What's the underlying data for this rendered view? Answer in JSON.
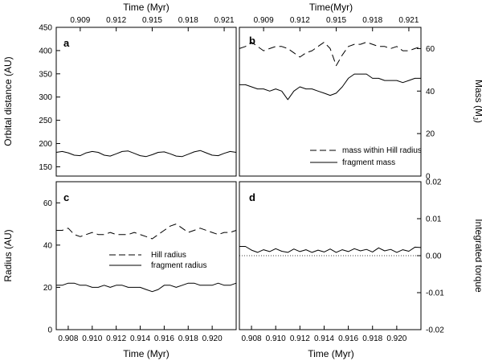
{
  "chart_data": [
    {
      "id": "a",
      "type": "line",
      "panel_label": "a",
      "top_xlabel": "Time (Myr)",
      "ylabel": "Orbital distance (AU)",
      "xlim": [
        0.907,
        0.922
      ],
      "ylim": [
        130,
        450
      ],
      "top_ticks": [
        "0.909",
        "0.912",
        "0.915",
        "0.918",
        "0.921"
      ],
      "y_ticks": [
        "150",
        "200",
        "250",
        "300",
        "350",
        "400",
        "450"
      ],
      "series": [
        {
          "name": "orbital distance",
          "style": "solid",
          "x": [
            0.907,
            0.9075,
            0.908,
            0.9085,
            0.909,
            0.9095,
            0.91,
            0.9105,
            0.911,
            0.9115,
            0.912,
            0.9125,
            0.913,
            0.9135,
            0.914,
            0.9145,
            0.915,
            0.9155,
            0.916,
            0.9165,
            0.917,
            0.9175,
            0.918,
            0.9185,
            0.919,
            0.9195,
            0.92,
            0.9205,
            0.921,
            0.9215,
            0.922
          ],
          "y": [
            181,
            183,
            180,
            175,
            174,
            180,
            183,
            181,
            175,
            173,
            178,
            183,
            184,
            179,
            174,
            172,
            176,
            181,
            182,
            178,
            173,
            172,
            177,
            182,
            185,
            180,
            175,
            174,
            179,
            183,
            181
          ]
        }
      ]
    },
    {
      "id": "b",
      "type": "line",
      "panel_label": "b",
      "top_xlabel": "Time(Myr)",
      "ylabel": "Mass (M",
      "ylabel_sub": "J",
      "ylabel_close": ")",
      "xlim": [
        0.907,
        0.922
      ],
      "ylim": [
        0,
        70
      ],
      "top_ticks": [
        "0.909",
        "0.912",
        "0.915",
        "0.918",
        "0.921"
      ],
      "y_ticks": [
        "0",
        "20",
        "40",
        "60"
      ],
      "legend": [
        "mass within Hill radius",
        "fragment mass"
      ],
      "series": [
        {
          "name": "mass within Hill radius",
          "style": "dashed",
          "x": [
            0.907,
            0.9075,
            0.908,
            0.9085,
            0.909,
            0.9095,
            0.91,
            0.9105,
            0.911,
            0.9115,
            0.912,
            0.9125,
            0.913,
            0.9135,
            0.914,
            0.9145,
            0.915,
            0.9155,
            0.916,
            0.9165,
            0.917,
            0.9175,
            0.918,
            0.9185,
            0.919,
            0.9195,
            0.92,
            0.9205,
            0.921,
            0.9215,
            0.922
          ],
          "y": [
            60,
            61,
            63,
            61,
            59,
            60,
            61,
            61,
            60,
            58,
            56,
            58,
            59,
            61,
            63,
            60,
            52,
            57,
            61,
            62,
            62,
            63,
            62,
            61,
            61,
            60,
            61,
            59,
            59,
            60,
            61
          ]
        },
        {
          "name": "fragment mass",
          "style": "solid",
          "x": [
            0.907,
            0.9075,
            0.908,
            0.9085,
            0.909,
            0.9095,
            0.91,
            0.9105,
            0.911,
            0.9115,
            0.912,
            0.9125,
            0.913,
            0.9135,
            0.914,
            0.9145,
            0.915,
            0.9155,
            0.916,
            0.9165,
            0.917,
            0.9175,
            0.918,
            0.9185,
            0.919,
            0.9195,
            0.92,
            0.9205,
            0.921,
            0.9215,
            0.922
          ],
          "y": [
            43,
            43,
            42,
            41,
            41,
            40,
            41,
            40,
            36,
            40,
            42,
            41,
            41,
            40,
            39,
            38,
            39,
            42,
            46,
            48,
            48,
            48,
            46,
            46,
            45,
            45,
            45,
            44,
            45,
            46,
            46
          ]
        }
      ]
    },
    {
      "id": "c",
      "type": "line",
      "panel_label": "c",
      "xlabel": "Time (Myr)",
      "ylabel": "Radius (AU)",
      "xlim": [
        0.907,
        0.922
      ],
      "ylim": [
        0,
        70
      ],
      "x_ticks": [
        "0.908",
        "0.910",
        "0.912",
        "0.914",
        "0.916",
        "0.918",
        "0.920"
      ],
      "y_ticks": [
        "0",
        "20",
        "40",
        "60"
      ],
      "legend": [
        "Hill radius",
        "fragment radius"
      ],
      "series": [
        {
          "name": "Hill radius",
          "style": "dashed",
          "x": [
            0.907,
            0.9075,
            0.908,
            0.9085,
            0.909,
            0.9095,
            0.91,
            0.9105,
            0.911,
            0.9115,
            0.912,
            0.9125,
            0.913,
            0.9135,
            0.914,
            0.9145,
            0.915,
            0.9155,
            0.916,
            0.9165,
            0.917,
            0.9175,
            0.918,
            0.9185,
            0.919,
            0.9195,
            0.92,
            0.9205,
            0.921,
            0.9215,
            0.922
          ],
          "y": [
            47,
            47,
            48,
            45,
            44,
            45,
            46,
            45,
            45,
            46,
            45,
            45,
            45,
            46,
            45,
            44,
            43,
            45,
            47,
            49,
            50,
            48,
            46,
            47,
            48,
            47,
            46,
            45,
            46,
            46,
            47
          ]
        },
        {
          "name": "fragment radius",
          "style": "solid",
          "x": [
            0.907,
            0.9075,
            0.908,
            0.9085,
            0.909,
            0.9095,
            0.91,
            0.9105,
            0.911,
            0.9115,
            0.912,
            0.9125,
            0.913,
            0.9135,
            0.914,
            0.9145,
            0.915,
            0.9155,
            0.916,
            0.9165,
            0.917,
            0.9175,
            0.918,
            0.9185,
            0.919,
            0.9195,
            0.92,
            0.9205,
            0.921,
            0.9215,
            0.922
          ],
          "y": [
            21,
            21,
            22,
            22,
            21,
            21,
            20,
            20,
            21,
            20,
            21,
            21,
            20,
            20,
            20,
            19,
            18,
            19,
            21,
            21,
            20,
            21,
            22,
            22,
            21,
            21,
            21,
            22,
            21,
            21,
            22
          ]
        }
      ]
    },
    {
      "id": "d",
      "type": "line",
      "panel_label": "d",
      "xlabel": "Time (Myr)",
      "ylabel": "Integrated torque",
      "xlim": [
        0.907,
        0.922
      ],
      "ylim": [
        -0.02,
        0.02
      ],
      "x_ticks": [
        "0.908",
        "0.910",
        "0.912",
        "0.914",
        "0.916",
        "0.918",
        "0.920"
      ],
      "y_ticks": [
        "-0.02",
        "-0.01",
        "0.00",
        "0.01",
        "0.02"
      ],
      "series": [
        {
          "name": "integrated torque",
          "style": "solid",
          "x": [
            0.907,
            0.9075,
            0.908,
            0.9085,
            0.909,
            0.9095,
            0.91,
            0.9105,
            0.911,
            0.9115,
            0.912,
            0.9125,
            0.913,
            0.9135,
            0.914,
            0.9145,
            0.915,
            0.9155,
            0.916,
            0.9165,
            0.917,
            0.9175,
            0.918,
            0.9185,
            0.919,
            0.9195,
            0.92,
            0.9205,
            0.921,
            0.9215,
            0.922
          ],
          "y": [
            0.0025,
            0.0025,
            0.0015,
            0.0009,
            0.0016,
            0.0011,
            0.0019,
            0.0012,
            0.0009,
            0.0018,
            0.0011,
            0.0016,
            0.0009,
            0.0015,
            0.001,
            0.0018,
            0.0009,
            0.0016,
            0.0011,
            0.0019,
            0.0013,
            0.0017,
            0.001,
            0.0021,
            0.0013,
            0.0017,
            0.0009,
            0.0016,
            0.0012,
            0.0023,
            0.0022
          ]
        },
        {
          "name": "zero line",
          "style": "dotted",
          "x": [
            0.907,
            0.922
          ],
          "y": [
            0.0,
            0.0
          ]
        }
      ]
    }
  ]
}
